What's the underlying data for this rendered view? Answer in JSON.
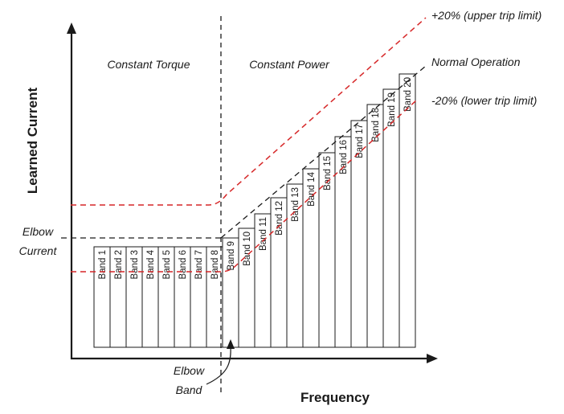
{
  "diagram": {
    "y_axis_title": "Learned Current",
    "x_axis_title": "Frequency",
    "region_left_label": "Constant Torque",
    "region_right_label": "Constant Power",
    "elbow_current_label_line1": "Elbow",
    "elbow_current_label_line2": "Current",
    "elbow_band_label_line1": "Elbow",
    "elbow_band_label_line2": "Band",
    "upper_limit_label": "+20% (upper trip limit)",
    "normal_label": "Normal Operation",
    "lower_limit_label": "-20% (lower trip limit)",
    "bands": [
      "Band 1",
      "Band 2",
      "Band 3",
      "Band 4",
      "Band 5",
      "Band 6",
      "Band 7",
      "Band 8",
      "Band 9",
      "Band 10",
      "Band 11",
      "Band 12",
      "Band 13",
      "Band 14",
      "Band 15",
      "Band 16",
      "Band 17",
      "Band 18",
      "Band 19",
      "Band 20"
    ],
    "colors": {
      "limit_line": "#d62728",
      "axis": "#1a1a1a",
      "text": "#1a1a1a"
    }
  }
}
